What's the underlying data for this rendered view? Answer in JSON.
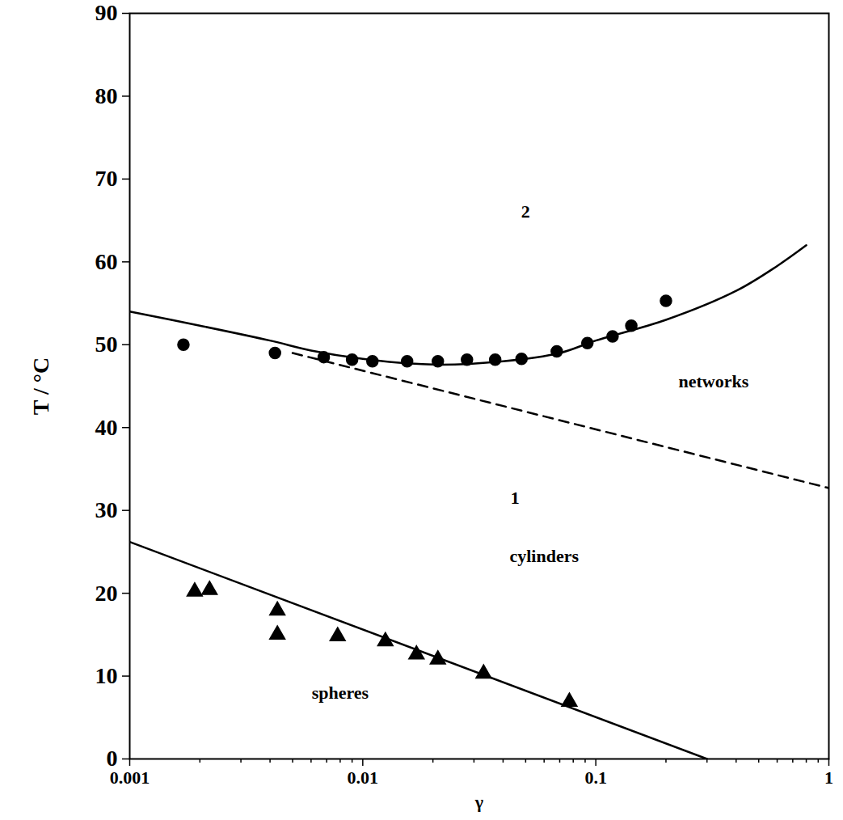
{
  "chart_data": {
    "type": "scatter",
    "x_label": "γ",
    "y_label": "T / °C",
    "log": "x",
    "xlim": [
      0.001,
      1
    ],
    "ylim": [
      0,
      90
    ],
    "xticks": [
      0.001,
      0.01,
      0.1,
      1
    ],
    "yticks": [
      0,
      10,
      20,
      30,
      40,
      50,
      60,
      70,
      80,
      90
    ],
    "series": [
      {
        "type": "scatter",
        "marker": "circle",
        "color": "#000000",
        "x": [
          0.0017,
          0.0042,
          0.0068,
          0.009,
          0.011,
          0.0155,
          0.021,
          0.028,
          0.037,
          0.048,
          0.068,
          0.092,
          0.118,
          0.142,
          0.2
        ],
        "values": [
          50,
          49,
          48.5,
          48.2,
          48,
          48,
          48,
          48.2,
          48.2,
          48.3,
          49.2,
          50.2,
          51,
          52.3,
          55.3
        ]
      },
      {
        "type": "scatter",
        "marker": "triangle",
        "color": "#000000",
        "x": [
          0.0019,
          0.0022,
          0.0043,
          0.0043,
          0.0078,
          0.0125,
          0.017,
          0.021,
          0.033,
          0.077
        ],
        "values": [
          20.2,
          20.4,
          17.9,
          15,
          14.8,
          14.2,
          12.6,
          12,
          10.3,
          6.9
        ]
      },
      {
        "type": "line",
        "line_style": "solid",
        "color": "#000000",
        "x": [
          0.001,
          0.002,
          0.004,
          0.006,
          0.01,
          0.02,
          0.04,
          0.07,
          0.1,
          0.2,
          0.4,
          0.6,
          0.8
        ],
        "values": [
          54,
          52.3,
          50.5,
          49.3,
          48.3,
          47.6,
          48,
          49,
          50.5,
          53,
          56.5,
          59.5,
          62
        ]
      },
      {
        "type": "line",
        "line_style": "dashed",
        "color": "#000000",
        "x": [
          0.005,
          1
        ],
        "values": [
          49,
          32.7
        ]
      },
      {
        "type": "line",
        "line_style": "solid",
        "color": "#000000",
        "x": [
          0.001,
          0.3
        ],
        "values": [
          26.2,
          0
        ]
      }
    ],
    "annotations": [
      {
        "text": "2",
        "x": 0.05,
        "y": 66
      },
      {
        "text": "1",
        "x": 0.045,
        "y": 31.5
      },
      {
        "text": "networks",
        "x": 0.32,
        "y": 45.5
      },
      {
        "text": "cylinders",
        "x": 0.06,
        "y": 24.5
      },
      {
        "text": "spheres",
        "x": 0.008,
        "y": 8
      }
    ]
  }
}
